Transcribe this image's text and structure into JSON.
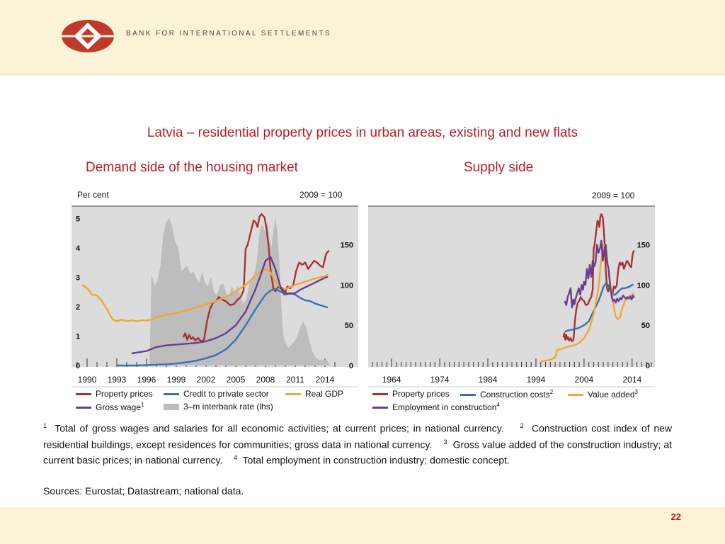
{
  "header": {
    "institution": "BANK FOR INTERNATIONAL SETTLEMENTS",
    "logo_colors": {
      "primary": "#c0392b",
      "inner": "#ffffff"
    }
  },
  "title": "Latvia – residential property prices in urban areas, existing and new flats",
  "colors": {
    "title": "#b81d24",
    "property": "#a83232",
    "credit": "#3a72b0",
    "gdp": "#f0a830",
    "wage": "#6a3d8f",
    "interbank": "#bdbdbd",
    "plot_bg": "#dcdcdc"
  },
  "chart_data": [
    {
      "type": "line",
      "subtitle": "Demand side of the housing market",
      "left_axis_label": "Per cent",
      "right_axis_label": "2009 = 100",
      "x_range": [
        1989,
        2015
      ],
      "x_ticks": [
        "1990",
        "1993",
        "1996",
        "1999",
        "2002",
        "2005",
        "2008",
        "2011",
        "2014"
      ],
      "y_left_ticks": [
        "0",
        "1",
        "2",
        "3",
        "4",
        "5"
      ],
      "y_left_range": [
        0,
        5.2
      ],
      "y_right_ticks": [
        "0",
        "50",
        "100",
        "150"
      ],
      "y_right_range": [
        0,
        190
      ],
      "legend_placement": "bottom",
      "series": [
        {
          "name": "Property prices",
          "axis": "right",
          "footnote": "",
          "x": [
            1999.7,
            1999.9,
            2000.1,
            2000.3,
            2000.5,
            2000.7,
            2000.9,
            2001.2,
            2001.5,
            2001.8,
            2002.1,
            2002.4,
            2002.7,
            2003.0,
            2003.3,
            2003.6,
            2004.0,
            2004.4,
            2004.8,
            2005.2,
            2005.5,
            2005.8,
            2006.0,
            2006.2,
            2006.5,
            2006.8,
            2007.0,
            2007.2,
            2007.4,
            2007.6,
            2007.9,
            2008.1,
            2008.3,
            2008.5,
            2008.8,
            2009.0,
            2009.3,
            2009.6,
            2009.9,
            2010.2,
            2010.5,
            2010.8,
            2011.1,
            2011.4,
            2011.7,
            2012.0,
            2012.3,
            2012.6,
            2012.9,
            2013.2,
            2013.5,
            2013.8,
            2014.1,
            2014.4
          ],
          "y": [
            35,
            40,
            32,
            38,
            33,
            35,
            31,
            34,
            30,
            32,
            55,
            70,
            78,
            80,
            85,
            82,
            80,
            75,
            76,
            82,
            85,
            94,
            145,
            150,
            165,
            180,
            178,
            172,
            185,
            188,
            184,
            170,
            150,
            120,
            95,
            92,
            98,
            95,
            88,
            98,
            96,
            100,
            118,
            128,
            125,
            128,
            120,
            125,
            130,
            128,
            124,
            122,
            138,
            143
          ]
        },
        {
          "name": "Credit to private sector",
          "axis": "right",
          "footnote": "",
          "x": [
            1993,
            1994,
            1995,
            1996,
            1997,
            1998,
            1999,
            2000,
            2001,
            2002,
            2003,
            2004,
            2005,
            2006,
            2007,
            2008,
            2008.5,
            2009,
            2009.5,
            2010,
            2010.5,
            2011,
            2011.5,
            2012,
            2012.5,
            2013,
            2013.5,
            2014,
            2014.3
          ],
          "y": [
            0,
            0,
            0,
            0.5,
            1,
            1.5,
            2.5,
            4,
            6,
            9,
            13,
            20,
            32,
            50,
            70,
            88,
            93,
            95,
            92,
            88,
            90,
            88,
            84,
            81,
            80,
            77,
            75,
            73,
            72
          ]
        },
        {
          "name": "Real GDP",
          "axis": "right",
          "footnote": "",
          "x": [
            1989.5,
            1990,
            1990.5,
            1991,
            1991.5,
            1992,
            1992.3,
            1992.6,
            1993,
            1993.5,
            1994,
            1994.5,
            1995,
            1995.5,
            1996,
            1996.5,
            1997,
            1998,
            1999,
            2000,
            2001,
            2002,
            2003,
            2004,
            2005,
            2006,
            2007,
            2008,
            2008.5,
            2009,
            2009.5,
            2010,
            2011,
            2012,
            2013,
            2014,
            2014.3
          ],
          "y": [
            100,
            96,
            88,
            87,
            80,
            70,
            63,
            57,
            55,
            57,
            55,
            56,
            55,
            56,
            56,
            57,
            60,
            63,
            65,
            68,
            72,
            76,
            80,
            85,
            92,
            100,
            112,
            120,
            116,
            104,
            97,
            95,
            100,
            104,
            108,
            111,
            113
          ]
        },
        {
          "name": "Gross wage",
          "axis": "right",
          "footnote": "1",
          "x": [
            1994.5,
            1995,
            1996,
            1997,
            1998,
            1999,
            2000,
            2001,
            2002,
            2003,
            2004,
            2005,
            2006,
            2007,
            2007.5,
            2008,
            2008.5,
            2009,
            2009.5,
            2010,
            2010.5,
            2011,
            2011.5,
            2012,
            2012.5,
            2013,
            2013.5,
            2014,
            2014.3
          ],
          "y": [
            15,
            16,
            18,
            23,
            25,
            26,
            27,
            28,
            30,
            34,
            40,
            50,
            67,
            95,
            112,
            130,
            135,
            120,
            98,
            90,
            89,
            90,
            94,
            97,
            100,
            103,
            106,
            109,
            110
          ]
        },
        {
          "name": "3–m interbank rate (lhs)",
          "axis": "left",
          "kind": "area",
          "footnote": "",
          "x": [
            1996.3,
            1996.5,
            1996.8,
            1997.1,
            1997.4,
            1997.7,
            1998.0,
            1998.3,
            1998.6,
            1998.9,
            1999.2,
            1999.5,
            1999.8,
            2000.1,
            2000.4,
            2000.7,
            2001.0,
            2001.3,
            2001.6,
            2001.9,
            2002.2,
            2002.5,
            2002.8,
            2003.1,
            2003.4,
            2003.7,
            2004.0,
            2004.3,
            2004.6,
            2004.9,
            2005.2,
            2005.5,
            2005.8,
            2006.1,
            2006.4,
            2006.7,
            2007.0,
            2007.2,
            2007.4,
            2007.6,
            2007.8,
            2008.0,
            2008.2,
            2008.4,
            2008.6,
            2008.8,
            2009.0,
            2009.2,
            2009.4,
            2009.6,
            2009.8,
            2010.0,
            2010.3,
            2010.6,
            2010.9,
            2011.2,
            2011.5,
            2011.8,
            2012.1,
            2012.4,
            2012.7,
            2013.0,
            2013.3,
            2013.6,
            2013.9,
            2014.2,
            2014.5
          ],
          "y": [
            0,
            3.1,
            2.7,
            2.9,
            3.4,
            4.5,
            4.9,
            5.0,
            4.7,
            4.2,
            4.0,
            3.2,
            3.3,
            3.4,
            3.1,
            3.2,
            3.0,
            2.8,
            3.2,
            2.8,
            2.7,
            3.0,
            2.5,
            2.4,
            2.7,
            2.8,
            2.5,
            2.3,
            2.7,
            2.5,
            2.7,
            2.3,
            2.1,
            2.3,
            2.8,
            3.0,
            3.3,
            3.8,
            4.5,
            4.8,
            4.7,
            4.5,
            4.9,
            4.3,
            4.0,
            4.6,
            5.0,
            4.5,
            3.5,
            2.0,
            1.0,
            0.8,
            0.6,
            0.7,
            0.8,
            1.0,
            1.3,
            1.5,
            1.3,
            0.9,
            0.5,
            0.3,
            0.2,
            0.2,
            0.2,
            0.2,
            0
          ]
        }
      ]
    },
    {
      "type": "line",
      "subtitle": "Supply side",
      "right_axis_label": "2009 = 100",
      "x_range": [
        1960,
        2018
      ],
      "x_ticks": [
        "1964",
        "1974",
        "1984",
        "1994",
        "2004",
        "2014"
      ],
      "y_right_ticks": [
        "0",
        "50",
        "100",
        "150"
      ],
      "y_right_range": [
        0,
        190
      ],
      "legend_placement": "bottom",
      "series": [
        {
          "name": "Property prices",
          "footnote": "",
          "x": [
            1999.7,
            1999.9,
            2000.1,
            2000.3,
            2000.5,
            2000.7,
            2000.9,
            2001.2,
            2001.5,
            2001.8,
            2002.1,
            2002.4,
            2002.7,
            2003.0,
            2003.3,
            2003.6,
            2004.0,
            2004.4,
            2004.8,
            2005.2,
            2005.5,
            2005.8,
            2006.0,
            2006.2,
            2006.5,
            2006.8,
            2007.0,
            2007.2,
            2007.4,
            2007.6,
            2007.9,
            2008.1,
            2008.3,
            2008.5,
            2008.8,
            2009.0,
            2009.3,
            2009.6,
            2009.9,
            2010.2,
            2010.5,
            2010.8,
            2011.1,
            2011.4,
            2011.7,
            2012.0,
            2012.3,
            2012.6,
            2012.9,
            2013.2,
            2013.5,
            2013.8,
            2014.1,
            2014.4
          ],
          "y": [
            35,
            40,
            32,
            38,
            33,
            35,
            31,
            34,
            30,
            32,
            55,
            70,
            78,
            80,
            85,
            82,
            80,
            75,
            76,
            82,
            85,
            94,
            145,
            150,
            165,
            180,
            178,
            172,
            185,
            188,
            184,
            170,
            150,
            120,
            95,
            92,
            98,
            95,
            88,
            98,
            96,
            100,
            118,
            128,
            125,
            128,
            120,
            125,
            130,
            128,
            124,
            122,
            138,
            143
          ]
        },
        {
          "name": "Construction costs",
          "footnote": "2",
          "x": [
            2000,
            2001,
            2002,
            2003,
            2004,
            2005,
            2006,
            2007,
            2007.5,
            2008,
            2008.5,
            2009,
            2009.5,
            2010,
            2010.5,
            2011,
            2011.5,
            2012,
            2012.5,
            2013,
            2013.5,
            2014,
            2014.3
          ],
          "y": [
            42,
            44,
            45,
            47,
            50,
            55,
            68,
            80,
            88,
            97,
            102,
            100,
            94,
            88,
            88,
            91,
            94,
            96,
            96,
            97,
            98,
            100,
            100
          ]
        },
        {
          "name": "Value added",
          "footnote": "3",
          "x": [
            1995,
            1996,
            1997,
            1998,
            1998.5,
            1999,
            2000,
            2001,
            2002,
            2003,
            2004,
            2005,
            2006,
            2007,
            2007.5,
            2008,
            2008.5,
            2009,
            2009.5,
            2010,
            2010.5,
            2011,
            2011.5,
            2012,
            2012.5,
            2013,
            2013.5,
            2014,
            2014.3
          ],
          "y": [
            5,
            6,
            7,
            10,
            20,
            20,
            22,
            24,
            25,
            28,
            34,
            44,
            64,
            96,
            128,
            150,
            148,
            122,
            100,
            80,
            62,
            57,
            60,
            72,
            80,
            83,
            85,
            88,
            90
          ]
        },
        {
          "name": "Employment in construction",
          "footnote": "4",
          "x": [
            2000,
            2000.3,
            2000.6,
            2000.9,
            2001.2,
            2001.5,
            2001.8,
            2002.0,
            2002.3,
            2002.6,
            2002.9,
            2003.2,
            2003.5,
            2003.8,
            2004.0,
            2004.3,
            2004.6,
            2004.9,
            2005.2,
            2005.5,
            2005.8,
            2006.1,
            2006.4,
            2006.7,
            2007.0,
            2007.3,
            2007.6,
            2007.9,
            2008.2,
            2008.5,
            2008.8,
            2009.1,
            2009.4,
            2009.7,
            2010.0,
            2010.3,
            2010.6,
            2010.9,
            2011.2,
            2011.5,
            2011.8,
            2012.1,
            2012.4,
            2012.7,
            2013.0,
            2013.3,
            2013.6,
            2013.9,
            2014.2,
            2014.4
          ],
          "y": [
            80,
            75,
            85,
            90,
            96,
            72,
            82,
            76,
            84,
            90,
            96,
            88,
            100,
            94,
            104,
            100,
            120,
            108,
            125,
            110,
            130,
            123,
            128,
            150,
            140,
            145,
            155,
            130,
            143,
            150,
            128,
            120,
            100,
            87,
            80,
            82,
            78,
            83,
            80,
            84,
            82,
            87,
            85,
            83,
            85,
            83,
            86,
            82,
            87,
            84
          ]
        }
      ]
    }
  ],
  "labels": {
    "per_cent": "Per cent",
    "index_left": "2009 = 100",
    "index_right": "2009 = 100"
  },
  "notes": {
    "n1_mark": "1",
    "n1": "Total of gross wages and salaries for all economic activities; at current prices; in national currency.",
    "n2_mark": "2",
    "n2": "Construction cost index of new residential buildings, except residences for communities; gross data in national currency.",
    "n3_mark": "3",
    "n3": "Gross value added of the construction industry; at current basic prices; in national currency.",
    "n4_mark": "4",
    "n4": "Total employment in construction industry; domestic concept."
  },
  "sources": "Sources: Eurostat; Datastream; national data.",
  "page_number": "22"
}
